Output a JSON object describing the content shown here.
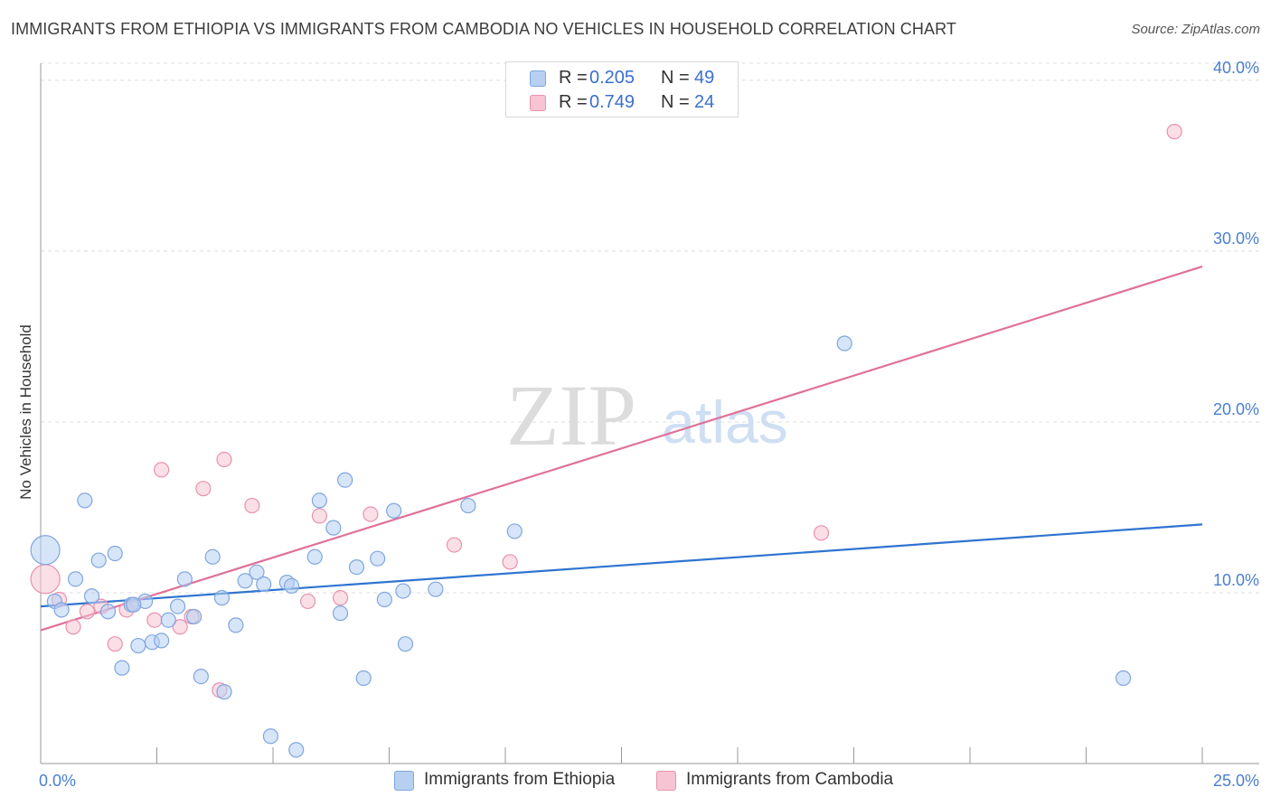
{
  "title": "IMMIGRANTS FROM ETHIOPIA VS IMMIGRANTS FROM CAMBODIA NO VEHICLES IN HOUSEHOLD CORRELATION CHART",
  "source": "Source: ZipAtlas.com",
  "watermark": {
    "zip": "ZIP",
    "atlas": "atlas"
  },
  "legend": {
    "r_label": "R =",
    "n_label": "N =",
    "ethiopia": {
      "r": "0.205",
      "n": "49"
    },
    "cambodia": {
      "r": "0.749",
      "n": "24"
    }
  },
  "colors": {
    "ethiopia_fill": "#b7d0f2",
    "ethiopia_stroke": "#7fa6e0",
    "ethiopia_line": "#2f74d0",
    "cambodia_fill": "#f7c4d3",
    "cambodia_stroke": "#e892ae",
    "cambodia_line": "#e07098",
    "tick_text": "#4a7fd0"
  },
  "chart_data": {
    "type": "scatter",
    "title": "IMMIGRANTS FROM ETHIOPIA VS IMMIGRANTS FROM CAMBODIA NO VEHICLES IN HOUSEHOLD CORRELATION CHART",
    "xlabel": "",
    "ylabel": "No Vehicles in Household",
    "xlim": [
      0,
      25
    ],
    "ylim": [
      0,
      41
    ],
    "x_tick_labels": [
      "0.0%",
      "25.0%"
    ],
    "y_ticks": [
      10,
      20,
      30,
      40
    ],
    "y_tick_labels": [
      "10.0%",
      "20.0%",
      "30.0%",
      "40.0%"
    ],
    "series": [
      {
        "name": "Immigrants from Ethiopia",
        "trend": {
          "x": [
            0,
            25
          ],
          "y": [
            9.2,
            14.0
          ]
        },
        "points": [
          {
            "x": 0.1,
            "y": 12.5,
            "big": 1
          },
          {
            "x": 0.3,
            "y": 9.5
          },
          {
            "x": 0.45,
            "y": 9.0
          },
          {
            "x": 0.75,
            "y": 10.8
          },
          {
            "x": 0.95,
            "y": 15.4
          },
          {
            "x": 1.1,
            "y": 9.8
          },
          {
            "x": 1.25,
            "y": 11.9
          },
          {
            "x": 1.45,
            "y": 8.9
          },
          {
            "x": 1.6,
            "y": 12.3
          },
          {
            "x": 1.75,
            "y": 5.6
          },
          {
            "x": 1.95,
            "y": 9.3
          },
          {
            "x": 2.1,
            "y": 6.9
          },
          {
            "x": 2.25,
            "y": 9.5
          },
          {
            "x": 2.4,
            "y": 7.1
          },
          {
            "x": 2.6,
            "y": 7.2
          },
          {
            "x": 2.75,
            "y": 8.4
          },
          {
            "x": 2.95,
            "y": 9.2
          },
          {
            "x": 3.1,
            "y": 10.8
          },
          {
            "x": 3.3,
            "y": 8.6
          },
          {
            "x": 3.45,
            "y": 5.1
          },
          {
            "x": 3.7,
            "y": 12.1
          },
          {
            "x": 3.9,
            "y": 9.7
          },
          {
            "x": 3.95,
            "y": 4.2
          },
          {
            "x": 4.2,
            "y": 8.1
          },
          {
            "x": 4.4,
            "y": 10.7
          },
          {
            "x": 4.65,
            "y": 11.2
          },
          {
            "x": 4.8,
            "y": 10.5
          },
          {
            "x": 4.95,
            "y": 1.6
          },
          {
            "x": 5.3,
            "y": 10.6
          },
          {
            "x": 5.4,
            "y": 10.4
          },
          {
            "x": 5.5,
            "y": 0.8
          },
          {
            "x": 5.9,
            "y": 12.1
          },
          {
            "x": 6.0,
            "y": 15.4
          },
          {
            "x": 6.3,
            "y": 13.8
          },
          {
            "x": 6.45,
            "y": 8.8
          },
          {
            "x": 6.55,
            "y": 16.6
          },
          {
            "x": 6.8,
            "y": 11.5
          },
          {
            "x": 6.95,
            "y": 5.0
          },
          {
            "x": 7.25,
            "y": 12.0
          },
          {
            "x": 7.4,
            "y": 9.6
          },
          {
            "x": 7.6,
            "y": 14.8
          },
          {
            "x": 7.8,
            "y": 10.1
          },
          {
            "x": 7.85,
            "y": 7.0
          },
          {
            "x": 8.5,
            "y": 10.2
          },
          {
            "x": 9.2,
            "y": 15.1
          },
          {
            "x": 10.2,
            "y": 13.6
          },
          {
            "x": 17.3,
            "y": 24.6
          },
          {
            "x": 23.3,
            "y": 5.0
          },
          {
            "x": 2.0,
            "y": 9.3
          }
        ]
      },
      {
        "name": "Immigrants from Cambodia",
        "trend": {
          "x": [
            0,
            25
          ],
          "y": [
            7.8,
            29.1
          ]
        },
        "points": [
          {
            "x": 0.1,
            "y": 10.8,
            "big": 1
          },
          {
            "x": 0.4,
            "y": 9.6
          },
          {
            "x": 0.7,
            "y": 8.0
          },
          {
            "x": 1.0,
            "y": 8.9
          },
          {
            "x": 1.3,
            "y": 9.2
          },
          {
            "x": 1.6,
            "y": 7.0
          },
          {
            "x": 1.85,
            "y": 9.0
          },
          {
            "x": 2.0,
            "y": 9.3
          },
          {
            "x": 2.45,
            "y": 8.4
          },
          {
            "x": 2.6,
            "y": 17.2
          },
          {
            "x": 3.0,
            "y": 8.0
          },
          {
            "x": 3.25,
            "y": 8.6
          },
          {
            "x": 3.5,
            "y": 16.1
          },
          {
            "x": 3.85,
            "y": 4.3
          },
          {
            "x": 3.95,
            "y": 17.8
          },
          {
            "x": 4.55,
            "y": 15.1
          },
          {
            "x": 5.75,
            "y": 9.5
          },
          {
            "x": 6.0,
            "y": 14.5
          },
          {
            "x": 6.45,
            "y": 9.7
          },
          {
            "x": 7.1,
            "y": 14.6
          },
          {
            "x": 8.9,
            "y": 12.8
          },
          {
            "x": 10.1,
            "y": 11.8
          },
          {
            "x": 16.8,
            "y": 13.5
          },
          {
            "x": 24.4,
            "y": 37.0
          }
        ]
      }
    ],
    "bottom_legend": [
      "Immigrants from Ethiopia",
      "Immigrants from Cambodia"
    ]
  }
}
